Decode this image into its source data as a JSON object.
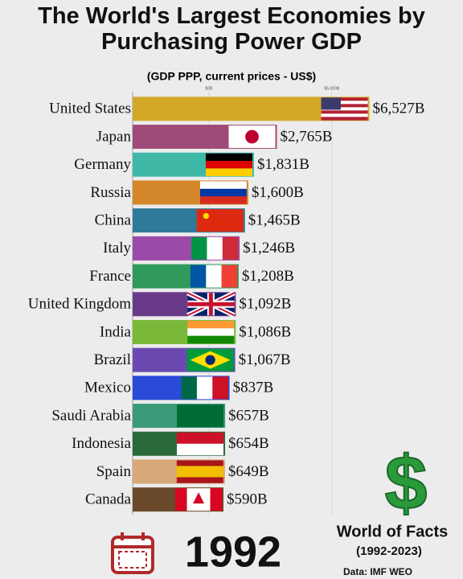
{
  "chart_data": {
    "type": "bar",
    "orientation": "horizontal",
    "title": "The World's Largest Economies by Purchasing Power GDP",
    "subtitle": "(GDP PPP, current prices - US$)",
    "categories": [
      "United States",
      "Japan",
      "Germany",
      "Russia",
      "China",
      "Italy",
      "France",
      "United Kingdom",
      "India",
      "Brazil",
      "Mexico",
      "Saudi Arabia",
      "Indonesia",
      "Spain",
      "Canada"
    ],
    "values": [
      6527,
      2765,
      1831,
      1600,
      1465,
      1246,
      1208,
      1092,
      1086,
      1067,
      837,
      657,
      654,
      649,
      590
    ],
    "value_labels": [
      "$6,527B",
      "$2,765B",
      "$1,831B",
      "$1,600B",
      "$1,465B",
      "$1,246B",
      "$1,208B",
      "$1,092B",
      "$1,086B",
      "$1,067B",
      "$837B",
      "$657B",
      "$654B",
      "$649B",
      "$590B"
    ],
    "colors": [
      "#d4a92a",
      "#a04a7a",
      "#3fb8a8",
      "#d4872a",
      "#2f7a9a",
      "#9a4aa8",
      "#2f9a5a",
      "#6a3a8a",
      "#7ab83a",
      "#6a4ab0",
      "#2a4ad8",
      "#3a9a7a",
      "#2a6a3a",
      "#d8a878",
      "#6a4a2a"
    ],
    "xlim": [
      0,
      7000
    ],
    "xticks": [
      {
        "value": 0,
        "label": "$0B"
      },
      {
        "value": 5000,
        "label": "$5,000B"
      }
    ],
    "year": "1992",
    "brand": "World of Facts",
    "brand_period": "(1992-2023)",
    "source": "Data:  IMF WEO"
  }
}
